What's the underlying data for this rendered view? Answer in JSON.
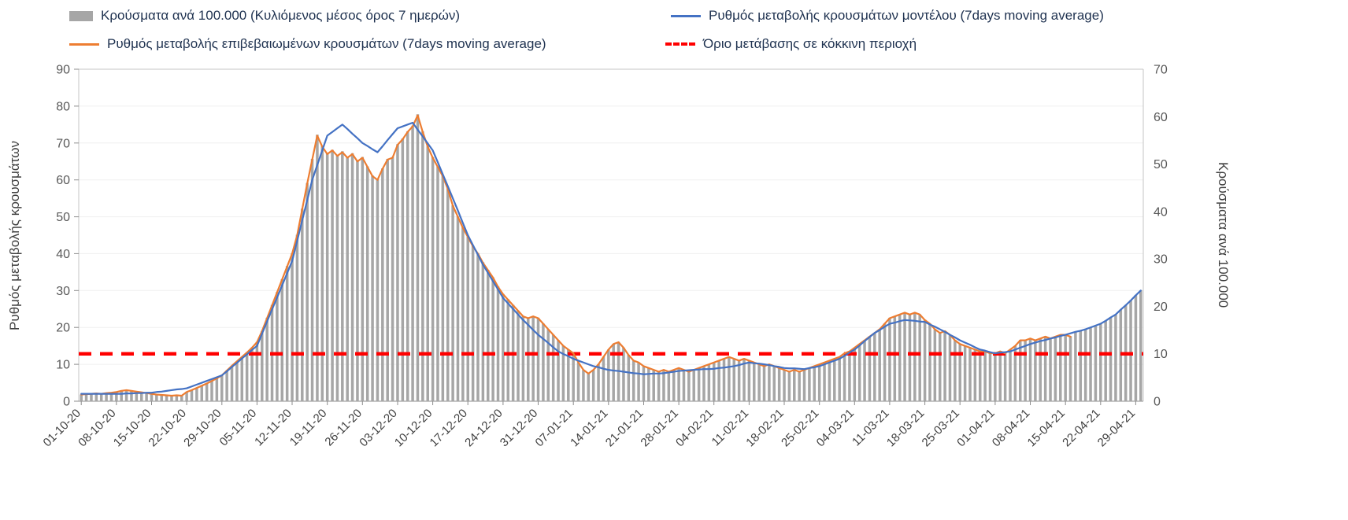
{
  "legend": {
    "items": [
      {
        "label": "Κρούσματα ανά 100.000 (Κυλιόμενος μέσος όρος 7 ημερών)",
        "type": "bar",
        "color": "#a6a6a6"
      },
      {
        "label": "Ρυθμός μεταβολής κρουσμάτων μοντέλου (7days moving average)",
        "type": "line",
        "color": "#4472c4"
      },
      {
        "label": "Ρυθμός μεταβολής επιβεβαιωμένων κρουσμάτων (7days moving average)",
        "type": "line",
        "color": "#ed7d31"
      },
      {
        "label": "Όριο μετάβασης σε κόκκινη περιοχή",
        "type": "dashed",
        "color": "#ff0000"
      }
    ]
  },
  "chart_data": {
    "type": "bar+line",
    "left_axis": {
      "label": "Ρυθμός μεταβολής κρουσμάτων",
      "min": 0,
      "max": 90,
      "step": 10
    },
    "right_axis": {
      "label": "Κρούσματα ανά 100.000",
      "min": 0,
      "max": 70,
      "step": 10
    },
    "x_tick_every": 7,
    "x_tick_labels": [
      "01-10-20",
      "08-10-20",
      "15-10-20",
      "22-10-20",
      "29-10-20",
      "05-11-20",
      "12-11-20",
      "19-11-20",
      "26-11-20",
      "03-12-20",
      "10-12-20",
      "17-12-20",
      "24-12-20",
      "31-12-20",
      "07-01-21",
      "14-01-21",
      "21-01-21",
      "28-01-21",
      "04-02-21",
      "11-02-21",
      "18-02-21",
      "25-02-21",
      "04-03-21",
      "11-03-21",
      "18-03-21",
      "25-03-21",
      "01-04-21",
      "08-04-21",
      "15-04-21",
      "22-04-21",
      "29-04-21"
    ],
    "threshold": {
      "name": "Όριο μετάβασης σε κόκκινη περιοχή",
      "axis": "right",
      "value": 10,
      "color": "#ff0000"
    },
    "grid": "horizontal-faint",
    "legend_position": "top",
    "series": [
      {
        "key": "cases-per-100k",
        "name": "Κρούσματα ανά 100.000 (Κυλιόμενος μέσος όρος 7 ημερών)",
        "type": "bar",
        "axis": "right",
        "color": "#a6a6a6",
        "values": [
          1.4,
          1.5,
          1.6,
          1.6,
          1.6,
          1.7,
          1.8,
          2,
          2.2,
          2.3,
          2.2,
          2,
          1.9,
          1.7,
          1.6,
          1.4,
          1.3,
          1.2,
          1.2,
          1.2,
          1.2,
          2,
          2.3,
          2.8,
          3.3,
          3.7,
          4.3,
          4.8,
          5.5,
          6.5,
          7.5,
          8.4,
          9.4,
          10.3,
          11.3,
          12.5,
          14.8,
          17.6,
          20.3,
          23,
          25.7,
          28.5,
          31.2,
          35.1,
          40.6,
          46,
          51.1,
          56.2,
          53.8,
          52.3,
          53,
          51.9,
          52.7,
          51.5,
          52.3,
          50.7,
          51.5,
          49.5,
          47.6,
          46.8,
          49.1,
          51.1,
          51.5,
          54.2,
          55.4,
          56.9,
          58.1,
          60.5,
          56.9,
          53.8,
          51.5,
          49.5,
          47.6,
          44.9,
          41.3,
          39,
          36.7,
          34.7,
          32.8,
          31.2,
          29.3,
          27.7,
          26.1,
          24.2,
          22.6,
          21.5,
          20.3,
          19.1,
          17.9,
          17.6,
          17.9,
          17.6,
          16.4,
          15.2,
          14,
          12.9,
          11.7,
          10.9,
          10.1,
          8.2,
          6.6,
          5.9,
          6.6,
          7.8,
          9.4,
          10.9,
          12.1,
          12.5,
          11.3,
          9.8,
          8.6,
          8.2,
          7.4,
          7,
          6.6,
          6.2,
          6.6,
          6.2,
          6.6,
          7,
          6.6,
          6.2,
          6.6,
          7,
          7.4,
          7.8,
          8.2,
          8.6,
          9,
          9.4,
          9,
          8.6,
          9,
          8.6,
          8.2,
          7.8,
          7.4,
          7.8,
          7.4,
          7,
          6.6,
          6.2,
          6.6,
          6.2,
          6.6,
          7,
          7.4,
          7.8,
          8.2,
          8.6,
          9,
          9.4,
          10.1,
          10.5,
          11.3,
          12.1,
          12.9,
          13.7,
          14.4,
          15.2,
          16.4,
          17.6,
          17.9,
          18.3,
          18.7,
          18.3,
          18.7,
          18.3,
          17.2,
          16.4,
          15.2,
          14.4,
          14.8,
          14,
          12.9,
          12.1,
          11.7,
          11.3,
          10.9,
          10.5,
          10.5,
          10.1,
          10.1,
          10.5,
          10.1,
          10.9,
          11.7,
          12.9,
          12.9,
          13.3,
          12.9,
          13.3,
          13.7,
          13.3,
          13.7,
          14,
          14,
          13.7,
          14.7,
          14.9,
          15.2,
          15.6,
          16,
          16.4,
          17,
          17.7,
          18.3,
          19.3,
          20.3,
          21.3,
          22.4,
          23.4
        ]
      },
      {
        "key": "model-rate",
        "name": "Ρυθμός μεταβολής κρουσμάτων μοντέλου (7days moving average)",
        "type": "line",
        "axis": "left",
        "color": "#4472c4",
        "values": [
          2,
          2,
          2,
          2,
          2,
          2,
          2,
          2,
          2,
          2.1,
          2.1,
          2.2,
          2.2,
          2.3,
          2.3,
          2.5,
          2.6,
          2.8,
          3,
          3.2,
          3.3,
          3.5,
          4,
          4.5,
          5,
          5.5,
          6,
          6.5,
          7,
          8.1,
          9.3,
          10.4,
          11.6,
          12.7,
          13.9,
          15,
          18.3,
          21.6,
          24.9,
          28.1,
          31.4,
          34.7,
          38,
          43.5,
          49,
          54.5,
          60,
          64,
          68,
          72,
          73,
          74,
          75,
          73.8,
          72.5,
          71.3,
          70,
          69.2,
          68.3,
          67.5,
          69.1,
          70.8,
          72.4,
          74,
          74.5,
          75,
          75.5,
          73.6,
          71.8,
          69.9,
          68,
          64.8,
          61.5,
          58.3,
          55,
          51.7,
          48.3,
          45,
          42.3,
          39.7,
          37,
          34.8,
          32.5,
          30.3,
          28,
          26.5,
          25,
          23.5,
          22,
          20.7,
          19.3,
          18,
          16.9,
          15.8,
          14.6,
          13.5,
          12.8,
          12.2,
          11.5,
          11,
          10.5,
          10,
          9.5,
          9.2,
          8.8,
          8.5,
          8.3,
          8.2,
          8,
          7.8,
          7.6,
          7.5,
          7.3,
          7.4,
          7.5,
          7.5,
          7.6,
          7.8,
          8,
          8.2,
          8.3,
          8.4,
          8.5,
          8.6,
          8.7,
          8.7,
          8.8,
          9,
          9.1,
          9.3,
          9.5,
          9.8,
          10.2,
          10.5,
          10.3,
          10.2,
          10,
          9.8,
          9.5,
          9.3,
          9,
          8.9,
          8.9,
          8.8,
          8.7,
          9,
          9.2,
          9.5,
          10,
          10.5,
          11,
          11.5,
          12.3,
          13.2,
          14,
          15.1,
          16.3,
          17.4,
          18.5,
          19.3,
          20.2,
          21,
          21.3,
          21.7,
          22,
          21.9,
          21.8,
          21.6,
          21.5,
          20.8,
          20.2,
          19.5,
          18.8,
          18,
          17.3,
          16.5,
          15.9,
          15.3,
          14.6,
          14,
          13.7,
          13.3,
          13,
          13.2,
          13.3,
          13.5,
          14,
          14.5,
          15,
          15.5,
          15.9,
          16.3,
          16.6,
          17,
          17.3,
          17.7,
          18,
          18.4,
          18.8,
          19.1,
          19.5,
          20,
          20.5,
          21,
          21.8,
          22.7,
          23.5,
          24.8,
          26,
          27.3,
          28.7,
          30
        ]
      },
      {
        "key": "confirmed-rate",
        "name": "Ρυθμός μεταβολής επιβεβαιωμένων κρουσμάτων (7days moving average)",
        "type": "line",
        "axis": "left",
        "color": "#ed7d31",
        "values": [
          1.8,
          1.9,
          2,
          2.1,
          2,
          2.2,
          2.3,
          2.5,
          2.8,
          3,
          2.8,
          2.6,
          2.4,
          2.2,
          2,
          1.8,
          1.7,
          1.6,
          1.5,
          1.6,
          1.5,
          2.5,
          3,
          3.6,
          4.2,
          4.8,
          5.5,
          6.2,
          7,
          8.3,
          9.6,
          10.8,
          12,
          13.2,
          14.5,
          16,
          19,
          22.5,
          26,
          29.5,
          33,
          36.5,
          40,
          45,
          52,
          59,
          65.5,
          72,
          69,
          67,
          68,
          66.5,
          67.5,
          66,
          67,
          65,
          66,
          63.5,
          61,
          60,
          63,
          65.5,
          66,
          69.5,
          71,
          73,
          74.5,
          77.5,
          73,
          69,
          66,
          63.5,
          61,
          57.5,
          53,
          50,
          47,
          44.5,
          42,
          40,
          37.5,
          35.5,
          33.5,
          31,
          29,
          27.5,
          26,
          24.5,
          23,
          22.5,
          23,
          22.5,
          21,
          19.5,
          18,
          16.5,
          15,
          14,
          13,
          10.5,
          8.5,
          7.5,
          8.5,
          10,
          12,
          14,
          15.5,
          16,
          14.5,
          12.5,
          11,
          10.5,
          9.5,
          9,
          8.5,
          8,
          8.5,
          8,
          8.5,
          9,
          8.5,
          8,
          8.5,
          9,
          9.5,
          10,
          10.5,
          11,
          11.5,
          12,
          11.5,
          11,
          11.5,
          11,
          10.5,
          10,
          9.5,
          10,
          9.5,
          9,
          8.5,
          8,
          8.5,
          8,
          8.5,
          9,
          9.5,
          10,
          10.5,
          11,
          11.5,
          12,
          13,
          13.5,
          14.5,
          15.5,
          16.5,
          17.5,
          18.5,
          19.5,
          21,
          22.5,
          23,
          23.5,
          24,
          23.5,
          24,
          23.5,
          22,
          21,
          19.5,
          18.5,
          19,
          18,
          16.5,
          15.5,
          15,
          14.5,
          14,
          13.5,
          13.5,
          13,
          13,
          13.5,
          13,
          14,
          15,
          16.5,
          16.5,
          17,
          16.5,
          17,
          17.5,
          17,
          17.5,
          18,
          18,
          17.5,
          null,
          null,
          null,
          null,
          null,
          null,
          null,
          null,
          null,
          null,
          null,
          null,
          null,
          null
        ]
      }
    ]
  }
}
